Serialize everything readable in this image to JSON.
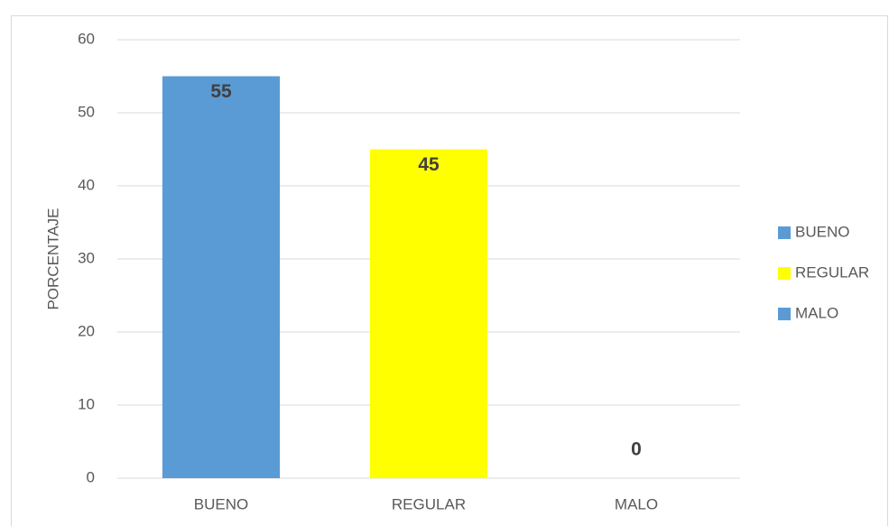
{
  "chart_data": {
    "type": "bar",
    "y_label": "PORCENTAJE",
    "categories": [
      "BUENO",
      "REGULAR",
      "MALO"
    ],
    "values": [
      55,
      45,
      0
    ],
    "colors": [
      "#5b9bd5",
      "#ffff00",
      "#5b9bd5"
    ],
    "ylim": [
      0,
      60
    ],
    "yticks": [
      0,
      10,
      20,
      30,
      40,
      50,
      60
    ],
    "grid": true,
    "legend": "right"
  }
}
